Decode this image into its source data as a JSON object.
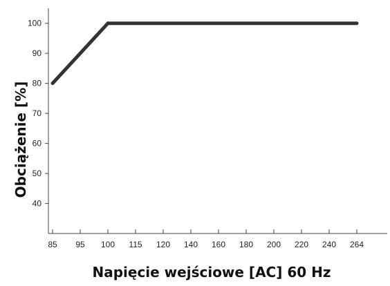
{
  "chart_data": {
    "type": "line",
    "title": "",
    "xlabel": "Napięcie wejściowe [AC] 60 Hz",
    "ylabel": "Obciążenie [%]",
    "x_tick_labels": [
      "85",
      "95",
      "100",
      "115",
      "120",
      "140",
      "160",
      "180",
      "200",
      "220",
      "240",
      "264"
    ],
    "y_tick_labels": [
      "40",
      "50",
      "60",
      "70",
      "80",
      "90",
      "100"
    ],
    "ylim": [
      30,
      105
    ],
    "grid": false,
    "legend": "none",
    "line_color": "#333333",
    "series": [
      {
        "points": [
          {
            "x": "85",
            "y": 80
          },
          {
            "x": "100",
            "y": 100
          },
          {
            "x": "264",
            "y": 100
          }
        ]
      }
    ]
  }
}
